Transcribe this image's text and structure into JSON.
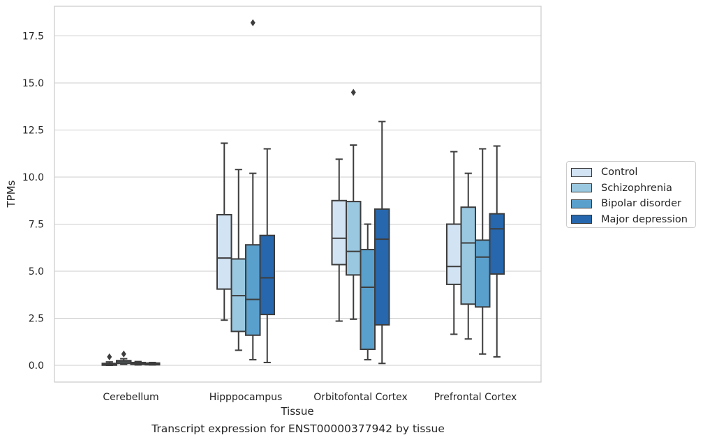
{
  "chart_data": {
    "type": "box",
    "ylabel": "TPMs",
    "xlabel": "Tissue",
    "caption": "Transcript expression for ENST00000377942 by tissue",
    "ylim": [
      -0.9,
      19.0
    ],
    "yticks": [
      "0.0",
      "2.5",
      "5.0",
      "7.5",
      "10.0",
      "12.5",
      "15.0",
      "17.5"
    ],
    "ytick_values": [
      0,
      2.5,
      5,
      7.5,
      10,
      12.5,
      15,
      17.5
    ],
    "grid": "horizontal",
    "legend_position": "right",
    "categories": [
      "Cerebellum",
      "Hipppocampus",
      "Orbitofontal Cortex",
      "Prefrontal Cortex"
    ],
    "series": [
      {
        "name": "Control",
        "color": "#d2e3f3",
        "boxes": [
          {
            "whislo": 0.0,
            "q1": 0.02,
            "med": 0.06,
            "q3": 0.1,
            "whishi": 0.18,
            "fliers": [
              0.45
            ]
          },
          {
            "whislo": 2.4,
            "q1": 4.05,
            "med": 5.7,
            "q3": 8.0,
            "whishi": 11.8,
            "fliers": []
          },
          {
            "whislo": 2.35,
            "q1": 5.35,
            "med": 6.75,
            "q3": 8.75,
            "whishi": 10.95,
            "fliers": []
          },
          {
            "whislo": 1.65,
            "q1": 4.3,
            "med": 5.25,
            "q3": 7.5,
            "whishi": 11.35,
            "fliers": []
          }
        ]
      },
      {
        "name": "Schizophrenia",
        "color": "#9ac8e0",
        "boxes": [
          {
            "whislo": 0.05,
            "q1": 0.1,
            "med": 0.18,
            "q3": 0.25,
            "whishi": 0.35,
            "fliers": [
              0.6
            ]
          },
          {
            "whislo": 0.8,
            "q1": 1.8,
            "med": 3.7,
            "q3": 5.65,
            "whishi": 10.4,
            "fliers": []
          },
          {
            "whislo": 2.45,
            "q1": 4.8,
            "med": 6.05,
            "q3": 8.7,
            "whishi": 11.7,
            "fliers": [
              14.5
            ]
          },
          {
            "whislo": 1.4,
            "q1": 3.25,
            "med": 6.5,
            "q3": 8.4,
            "whishi": 10.2,
            "fliers": []
          }
        ]
      },
      {
        "name": "Bipolar disorder",
        "color": "#5aa0cd",
        "boxes": [
          {
            "whislo": 0.02,
            "q1": 0.05,
            "med": 0.1,
            "q3": 0.15,
            "whishi": 0.2,
            "fliers": []
          },
          {
            "whislo": 0.3,
            "q1": 1.6,
            "med": 3.5,
            "q3": 6.4,
            "whishi": 10.2,
            "fliers": [
              18.2
            ]
          },
          {
            "whislo": 0.3,
            "q1": 0.85,
            "med": 4.15,
            "q3": 6.15,
            "whishi": 7.5,
            "fliers": []
          },
          {
            "whislo": 0.6,
            "q1": 3.1,
            "med": 5.75,
            "q3": 6.65,
            "whishi": 11.5,
            "fliers": []
          }
        ]
      },
      {
        "name": "Major depression",
        "color": "#2667ae",
        "boxes": [
          {
            "whislo": 0.02,
            "q1": 0.05,
            "med": 0.08,
            "q3": 0.12,
            "whishi": 0.15,
            "fliers": []
          },
          {
            "whislo": 0.15,
            "q1": 2.7,
            "med": 4.65,
            "q3": 6.9,
            "whishi": 11.5,
            "fliers": []
          },
          {
            "whislo": 0.1,
            "q1": 2.15,
            "med": 6.7,
            "q3": 8.3,
            "whishi": 12.95,
            "fliers": []
          },
          {
            "whislo": 0.45,
            "q1": 4.85,
            "med": 7.25,
            "q3": 8.05,
            "whishi": 11.65,
            "fliers": []
          }
        ]
      }
    ]
  }
}
